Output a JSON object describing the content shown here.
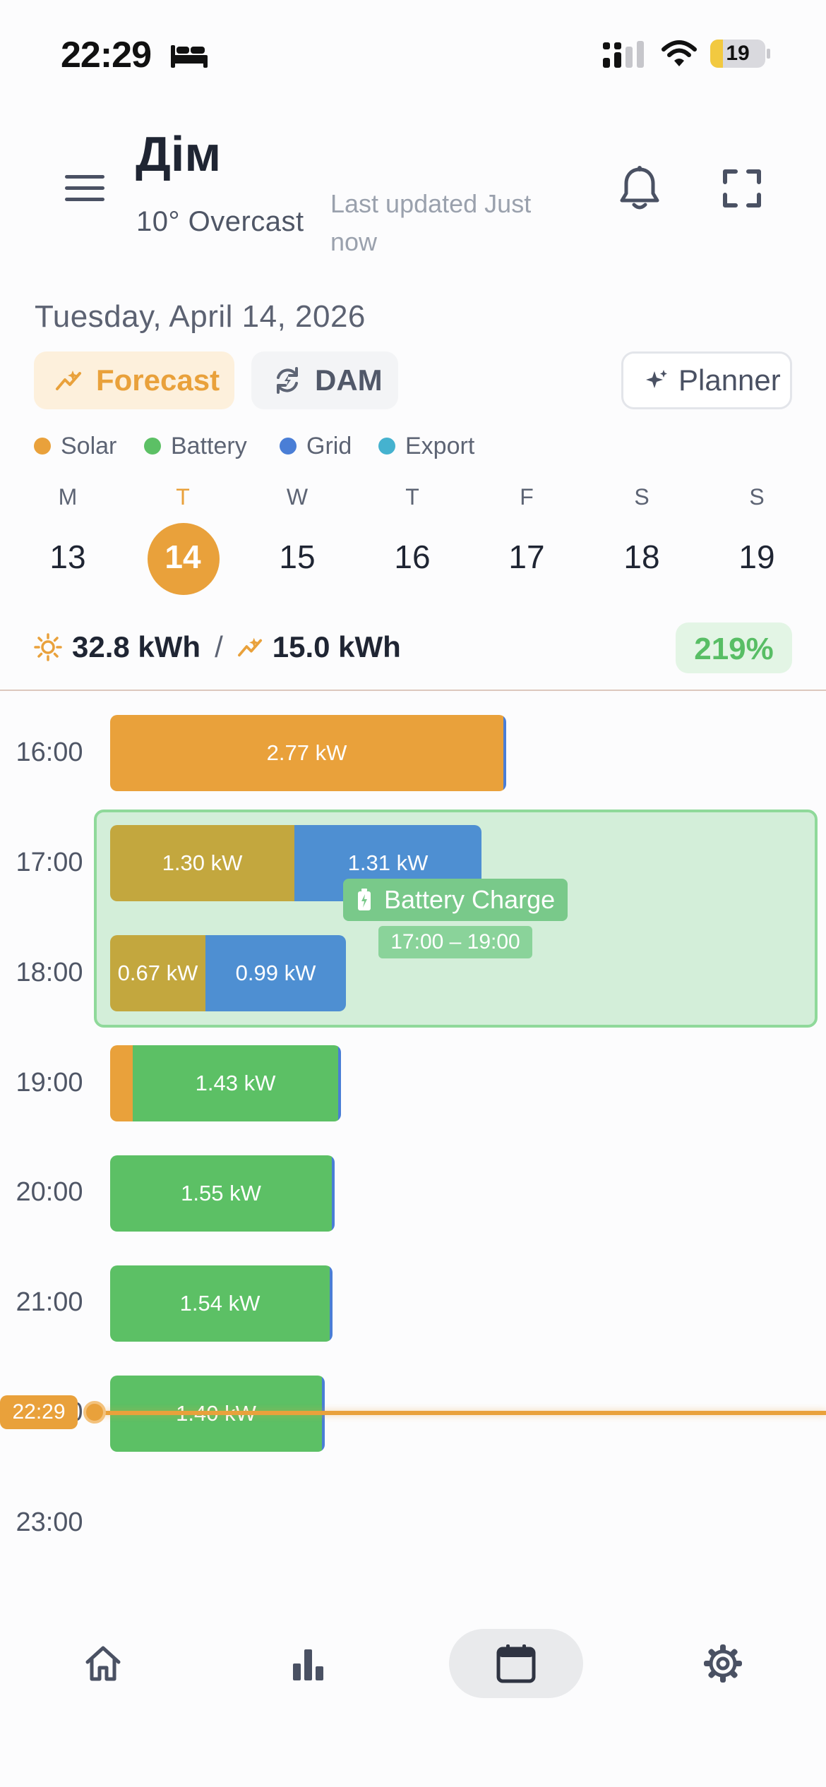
{
  "status_bar": {
    "time": "22:29",
    "battery_level": "19",
    "icons": [
      "bed-icon",
      "cellular-signal-icon",
      "wifi-icon",
      "battery-icon"
    ]
  },
  "header": {
    "title": "Дім",
    "weather": "10° Overcast",
    "last_updated": "Last updated Just now",
    "icons": [
      "menu-icon",
      "bell-icon",
      "expand-icon"
    ]
  },
  "date_label": "Tuesday, April 14, 2026",
  "mode_pills": {
    "forecast": "Forecast",
    "dam": "DAM",
    "planner": "Planner"
  },
  "legend": [
    {
      "label": "Solar",
      "color": "#e9a13b"
    },
    {
      "label": "Battery",
      "color": "#5cc065"
    },
    {
      "label": "Grid",
      "color": "#4a7ed6"
    },
    {
      "label": "Export",
      "color": "#45b2cf"
    }
  ],
  "week": {
    "letters": [
      "M",
      "T",
      "W",
      "T",
      "F",
      "S",
      "S"
    ],
    "days": [
      "13",
      "14",
      "15",
      "16",
      "17",
      "18",
      "19"
    ],
    "selected_index": 1
  },
  "summary": {
    "solar_total": "32.8 kWh",
    "separator": "/",
    "forecast_total": "15.0 kWh",
    "percent": "219%"
  },
  "timeline": {
    "hours": [
      "16:00",
      "17:00",
      "18:00",
      "19:00",
      "20:00",
      "21:00",
      "22:00",
      "23:00"
    ],
    "rows": [
      {
        "hour": "16:00",
        "label": "2.77 kW"
      },
      {
        "hour": "17:00",
        "labels": [
          "1.30 kW",
          "1.31 kW"
        ]
      },
      {
        "hour": "18:00",
        "labels": [
          "0.67 kW",
          "0.99 kW"
        ]
      },
      {
        "hour": "19:00",
        "label": "1.43 kW"
      },
      {
        "hour": "20:00",
        "label": "1.55 kW"
      },
      {
        "hour": "21:00",
        "label": "1.54 kW"
      },
      {
        "hour": "22:00",
        "label": "1.40 kW"
      }
    ],
    "charge_event": {
      "label": "Battery Charge",
      "range": "17:00 – 19:00"
    },
    "now_marker": "22:29"
  },
  "bottom_nav": [
    "home-icon",
    "chart-icon",
    "calendar-icon",
    "settings-icon"
  ],
  "colors": {
    "accent": "#e9a13b",
    "battery": "#5cc065",
    "grid": "#4e8fd2",
    "mixed": "#c3a73e",
    "success_bg": "#e3f5e5"
  }
}
